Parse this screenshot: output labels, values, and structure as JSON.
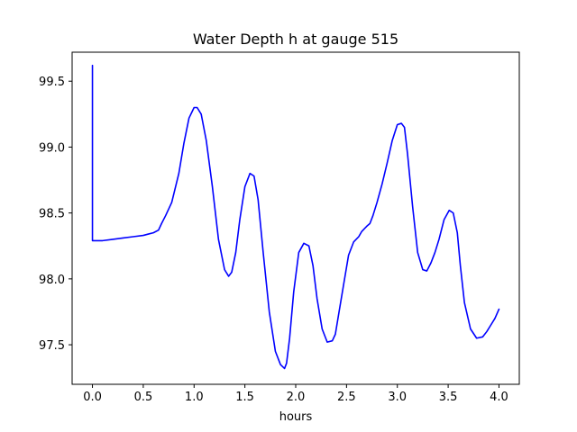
{
  "chart_data": {
    "type": "line",
    "title": "Water Depth h at gauge 515",
    "xlabel": "hours",
    "ylabel": "",
    "xlim": [
      -0.2,
      4.2
    ],
    "ylim": [
      97.2,
      99.72
    ],
    "xticks": [
      0.0,
      0.5,
      1.0,
      1.5,
      2.0,
      2.5,
      3.0,
      3.5,
      4.0
    ],
    "xtick_labels": [
      "0.0",
      "0.5",
      "1.0",
      "1.5",
      "2.0",
      "2.5",
      "3.0",
      "3.5",
      "4.0"
    ],
    "yticks": [
      97.5,
      98.0,
      98.5,
      99.0,
      99.5
    ],
    "ytick_labels": [
      "97.5",
      "98.0",
      "98.5",
      "99.0",
      "99.5"
    ],
    "grid": false,
    "series": [
      {
        "color": "#0000ff",
        "x": [
          0.0,
          0.0,
          0.0,
          0.05,
          0.1,
          0.2,
          0.3,
          0.4,
          0.5,
          0.55,
          0.6,
          0.65,
          0.68,
          0.72,
          0.78,
          0.85,
          0.9,
          0.95,
          1.0,
          1.03,
          1.07,
          1.12,
          1.18,
          1.24,
          1.3,
          1.34,
          1.37,
          1.41,
          1.45,
          1.5,
          1.55,
          1.59,
          1.63,
          1.68,
          1.74,
          1.8,
          1.85,
          1.89,
          1.91,
          1.94,
          1.98,
          2.03,
          2.08,
          2.13,
          2.17,
          2.21,
          2.26,
          2.31,
          2.36,
          2.39,
          2.42,
          2.47,
          2.52,
          2.57,
          2.62,
          2.65,
          2.7,
          2.73,
          2.76,
          2.8,
          2.85,
          2.9,
          2.95,
          3.0,
          3.04,
          3.07,
          3.1,
          3.15,
          3.2,
          3.25,
          3.29,
          3.33,
          3.37,
          3.41,
          3.46,
          3.51,
          3.55,
          3.59,
          3.62,
          3.66,
          3.72,
          3.78,
          3.84,
          3.88,
          3.92,
          3.96,
          4.0
        ],
        "y": [
          99.62,
          98.3,
          98.29,
          98.29,
          98.29,
          98.3,
          98.31,
          98.32,
          98.33,
          98.34,
          98.35,
          98.37,
          98.42,
          98.48,
          98.58,
          98.8,
          99.03,
          99.22,
          99.3,
          99.3,
          99.25,
          99.05,
          98.7,
          98.3,
          98.07,
          98.02,
          98.05,
          98.2,
          98.45,
          98.7,
          98.8,
          98.78,
          98.6,
          98.2,
          97.75,
          97.45,
          97.35,
          97.32,
          97.36,
          97.55,
          97.9,
          98.2,
          98.27,
          98.25,
          98.1,
          97.85,
          97.62,
          97.52,
          97.53,
          97.58,
          97.72,
          97.95,
          98.18,
          98.28,
          98.32,
          98.36,
          98.4,
          98.42,
          98.48,
          98.58,
          98.72,
          98.88,
          99.05,
          99.17,
          99.18,
          99.15,
          98.95,
          98.55,
          98.2,
          98.07,
          98.06,
          98.12,
          98.2,
          98.3,
          98.45,
          98.52,
          98.5,
          98.35,
          98.1,
          97.82,
          97.62,
          97.55,
          97.56,
          97.6,
          97.65,
          97.7,
          97.77
        ]
      }
    ]
  }
}
